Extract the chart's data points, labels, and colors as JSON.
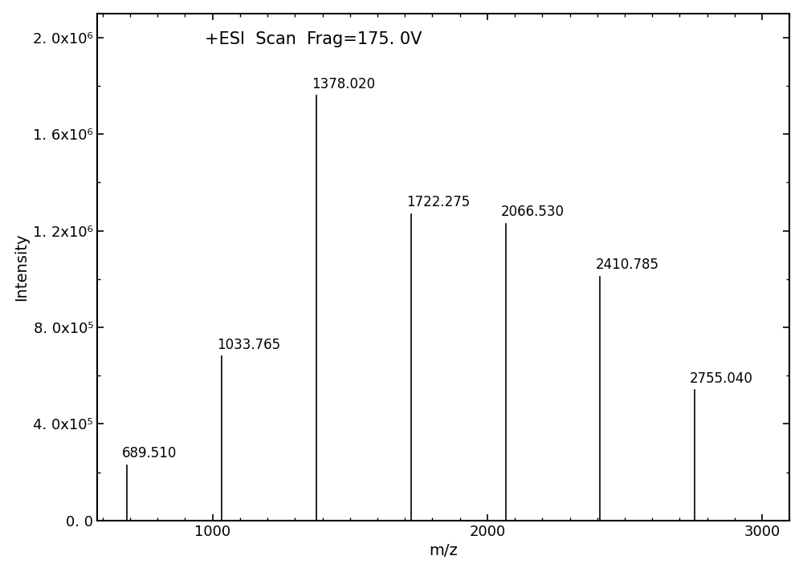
{
  "peaks": [
    {
      "mz": 689.51,
      "intensity": 230000
    },
    {
      "mz": 1033.765,
      "intensity": 680000
    },
    {
      "mz": 1378.02,
      "intensity": 1760000
    },
    {
      "mz": 1722.275,
      "intensity": 1270000
    },
    {
      "mz": 2066.53,
      "intensity": 1230000
    },
    {
      "mz": 2410.785,
      "intensity": 1010000
    },
    {
      "mz": 2755.04,
      "intensity": 540000
    }
  ],
  "title": "+ESI  Scan  Frag=175. 0V",
  "xlabel": "m/z",
  "ylabel": "Intensity",
  "xlim": [
    580,
    3100
  ],
  "ylim": [
    0,
    2100000
  ],
  "xticks": [
    1000,
    2000,
    3000
  ],
  "yticks": [
    0,
    400000,
    800000,
    1200000,
    1600000,
    2000000
  ],
  "ytick_labels": [
    "0. 0",
    "4. 0x10⁵",
    "8. 0x10⁵",
    "1. 2x10⁶",
    "1. 6x10⁶",
    "2. 0x10⁶"
  ],
  "line_color": "#000000",
  "background_color": "#ffffff",
  "title_fontsize": 15,
  "label_fontsize": 14,
  "tick_fontsize": 13,
  "annotation_fontsize": 12
}
